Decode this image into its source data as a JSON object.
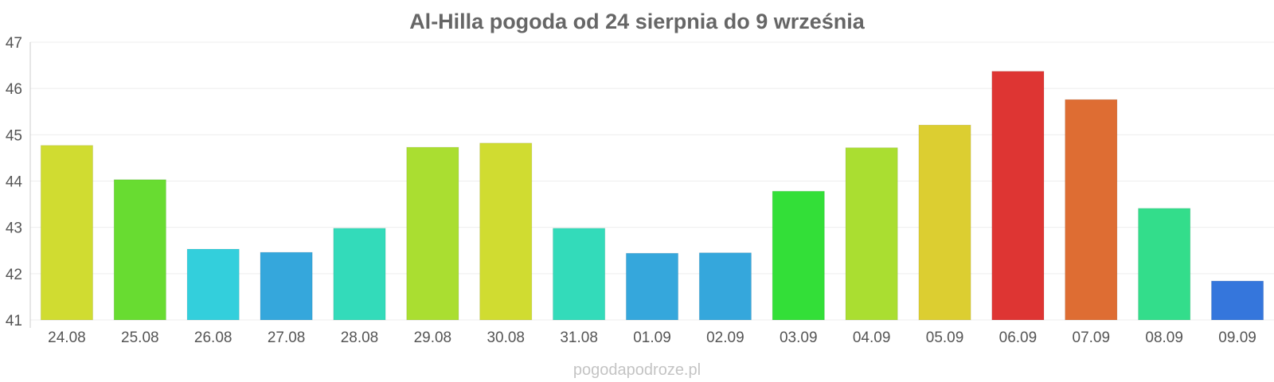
{
  "footer": "pogodapodroze.pl",
  "chart_data": {
    "type": "bar",
    "title": "Al-Hilla pogoda od 24 sierpnia do 9 września",
    "xlabel": "",
    "ylabel": "",
    "ylim": [
      41,
      47
    ],
    "yticks": [
      "41",
      "42",
      "43",
      "44",
      "45",
      "46",
      "47"
    ],
    "grid": true,
    "categories": [
      "24.08",
      "25.08",
      "26.08",
      "27.08",
      "28.08",
      "29.08",
      "30.08",
      "31.08",
      "01.09",
      "02.09",
      "03.09",
      "04.09",
      "05.09",
      "06.09",
      "07.09",
      "08.09",
      "09.09"
    ],
    "values": [
      44.77,
      44.03,
      42.53,
      42.46,
      42.98,
      44.73,
      44.82,
      42.98,
      42.44,
      42.45,
      43.78,
      44.72,
      45.21,
      46.37,
      45.76,
      43.41,
      41.84
    ],
    "colors": [
      "#d0dc31",
      "#68dc31",
      "#33cfdc",
      "#35a7dc",
      "#33dbba",
      "#aade31",
      "#d0dc31",
      "#33dbba",
      "#35a7dc",
      "#35a7dc",
      "#33df38",
      "#aade31",
      "#dcce31",
      "#de3533",
      "#de6d33",
      "#33dd8b",
      "#3576dc"
    ]
  }
}
